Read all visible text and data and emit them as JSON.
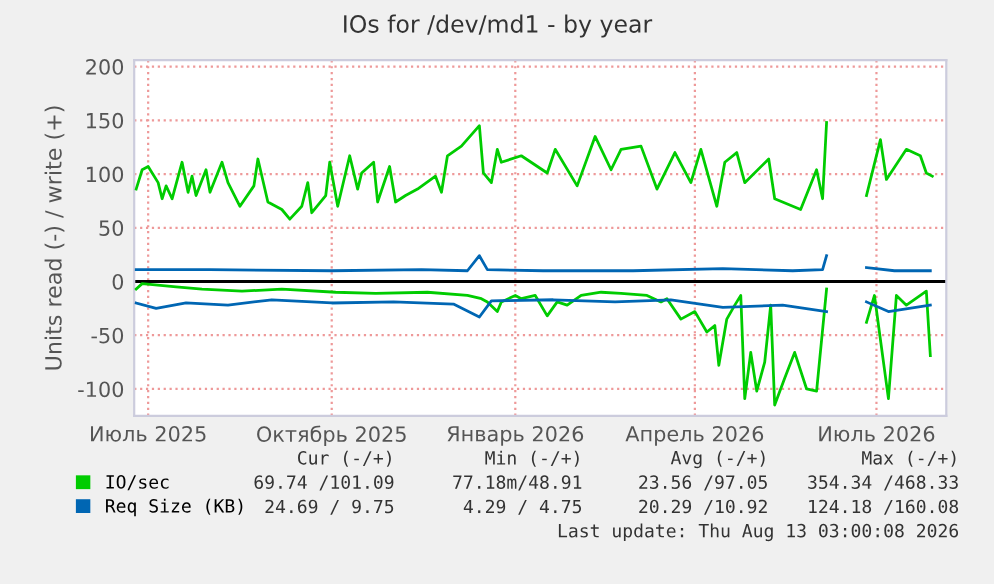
{
  "chart_data": {
    "type": "line",
    "title": "IOs for /dev/md1 - by year",
    "ylabel": "Units read (-) / write (+)",
    "xlim": [
      "2025-06-24",
      "2026-08-05"
    ],
    "xticks": [
      {
        "value": "2025-07-01",
        "label": "Июль 2025"
      },
      {
        "value": "2025-10-01",
        "label": "Октябрь 2025"
      },
      {
        "value": "2026-01-01",
        "label": "Январь 2026"
      },
      {
        "value": "2026-04-01",
        "label": "Апрель 2026"
      },
      {
        "value": "2026-07-01",
        "label": "Июль 2026"
      }
    ],
    "ylim": [
      -125,
      206
    ],
    "yticks": [
      -100,
      -50,
      0,
      50,
      100,
      150,
      200
    ],
    "grid": true,
    "legend": "bottom",
    "marker": "none",
    "line_style": "solid",
    "ref_lines": [
      {
        "axis": "y",
        "value": 0,
        "color": "#000000"
      }
    ],
    "series": [
      {
        "name": "IO/sec",
        "color": "#00cc00",
        "x": [
          "2025-06-25",
          "2025-06-28",
          "2025-07-01",
          "2025-07-06",
          "2025-07-08",
          "2025-07-10",
          "2025-07-13",
          "2025-07-18",
          "2025-07-21",
          "2025-07-23",
          "2025-07-25",
          "2025-07-30",
          "2025-08-01",
          "2025-08-07",
          "2025-08-10",
          "2025-08-16",
          "2025-08-23",
          "2025-08-25",
          "2025-08-30",
          "2025-09-06",
          "2025-09-10",
          "2025-09-16",
          "2025-09-19",
          "2025-09-21",
          "2025-09-28",
          "2025-09-30",
          "2025-10-04",
          "2025-10-10",
          "2025-10-14",
          "2025-10-16",
          "2025-10-22",
          "2025-10-24",
          "2025-10-30",
          "2025-11-02",
          "2025-11-07",
          "2025-11-13",
          "2025-11-22",
          "2025-11-25",
          "2025-11-28",
          "2025-12-05",
          "2025-12-14",
          "2025-12-16",
          "2025-12-20",
          "2025-12-23",
          "2025-12-25",
          "2026-01-04",
          "2026-01-17",
          "2026-01-21",
          "2026-02-01",
          "2026-02-10",
          "2026-02-18",
          "2026-02-23",
          "2026-03-05",
          "2026-03-13",
          "2026-03-22",
          "2026-03-30",
          "2026-04-04",
          "2026-04-12",
          "2026-04-16",
          "2026-04-22",
          "2026-04-26",
          "2026-05-08",
          "2026-05-11",
          "2026-05-24",
          "2026-06-01",
          "2026-06-04",
          "2026-06-06",
          "2026-06-15",
          "2026-06-26",
          "2026-07-03",
          "2026-07-06",
          "2026-07-16",
          "2026-07-23",
          "2026-07-26",
          "2026-07-29"
        ],
        "values": [
          86,
          104,
          107,
          92,
          77,
          89,
          77,
          111,
          83,
          98,
          80,
          104,
          83,
          111,
          92,
          70,
          89,
          114,
          74,
          67,
          58,
          70,
          92,
          64,
          80,
          111,
          70,
          117,
          86,
          101,
          111,
          74,
          107,
          74,
          80,
          86,
          98,
          83,
          117,
          126,
          145,
          101,
          92,
          123,
          111,
          117,
          101,
          123,
          89,
          135,
          104,
          123,
          126,
          86,
          120,
          92,
          123,
          70,
          111,
          120,
          92,
          114,
          77,
          67,
          104,
          77,
          148,
          null,
          80,
          132,
          95,
          123,
          117,
          101,
          98
        ]
      },
      {
        "color": "#00cc00",
        "x": [
          "2025-06-25",
          "2025-06-28",
          "2025-07-15",
          "2025-07-28",
          "2025-08-17",
          "2025-09-06",
          "2025-10-03",
          "2025-10-23",
          "2025-11-18",
          "2025-12-08",
          "2025-12-15",
          "2025-12-18",
          "2025-12-23",
          "2025-12-25",
          "2026-01-01",
          "2026-01-04",
          "2026-01-11",
          "2026-01-17",
          "2026-01-22",
          "2026-01-27",
          "2026-02-03",
          "2026-02-13",
          "2026-02-23",
          "2026-03-08",
          "2026-03-15",
          "2026-03-18",
          "2026-03-25",
          "2026-04-01",
          "2026-04-07",
          "2026-04-11",
          "2026-04-13",
          "2026-04-17",
          "2026-04-21",
          "2026-04-24",
          "2026-04-26",
          "2026-04-29",
          "2026-05-02",
          "2026-05-06",
          "2026-05-09",
          "2026-05-11",
          "2026-05-16",
          "2026-05-21",
          "2026-05-27",
          "2026-06-01",
          "2026-06-06",
          "2026-06-15",
          "2026-06-26",
          "2026-06-30",
          "2026-07-07",
          "2026-07-11",
          "2026-07-16",
          "2026-07-23",
          "2026-07-26",
          "2026-07-28"
        ],
        "values": [
          -7,
          -2,
          -5,
          -7,
          -9,
          -7,
          -10,
          -11,
          -10,
          -13,
          -16,
          -19,
          -28,
          -19,
          -13,
          -16,
          -13,
          -32,
          -19,
          -22,
          -13,
          -10,
          -11,
          -13,
          -19,
          -16,
          -35,
          -28,
          -47,
          -41,
          -78,
          -35,
          -22,
          -13,
          -109,
          -66,
          -102,
          -75,
          -22,
          -115,
          -90,
          -66,
          -100,
          -102,
          -7,
          null,
          -38,
          -13,
          -109,
          -13,
          -22,
          -13,
          -9,
          -69
        ]
      },
      {
        "name": "Req Size (KB)",
        "color": "#0066b3",
        "x": [
          "2025-06-25",
          "2025-08-01",
          "2025-10-01",
          "2025-11-15",
          "2025-12-08",
          "2025-12-14",
          "2025-12-18",
          "2026-01-15",
          "2026-03-01",
          "2026-04-15",
          "2026-05-20",
          "2026-06-04",
          "2026-06-06",
          "2026-06-15",
          "2026-06-26",
          "2026-07-10",
          "2026-07-28"
        ],
        "values": [
          11,
          11,
          10,
          11,
          10,
          24,
          11,
          10,
          10,
          12,
          10,
          11,
          24,
          null,
          13,
          10,
          10
        ]
      },
      {
        "color": "#0066b3",
        "x": [
          "2025-06-25",
          "2025-07-05",
          "2025-07-20",
          "2025-08-10",
          "2025-09-01",
          "2025-10-01",
          "2025-11-01",
          "2025-12-01",
          "2025-12-14",
          "2025-12-20",
          "2026-01-20",
          "2026-02-20",
          "2026-03-20",
          "2026-04-15",
          "2026-05-15",
          "2026-06-06",
          "2026-06-15",
          "2026-06-26",
          "2026-07-07",
          "2026-07-28"
        ],
        "values": [
          -20,
          -25,
          -20,
          -22,
          -17,
          -20,
          -19,
          -21,
          -33,
          -18,
          -17,
          -19,
          -17,
          -24,
          -22,
          -28,
          null,
          -19,
          -28,
          -22
        ]
      }
    ],
    "annotations": [
      "Cur (-/+)",
      "Min (-/+)",
      "Avg (-/+)",
      "Max (-/+)",
      "69.74 /101.09",
      "77.18m/48.91",
      "23.56 /97.05",
      "354.34 /468.33",
      "24.69 / 9.75",
      "4.29 / 4.75",
      "20.29 /10.92",
      "124.18 /160.08",
      "Last update: Thu Aug 13 03:00:08 2026"
    ]
  }
}
